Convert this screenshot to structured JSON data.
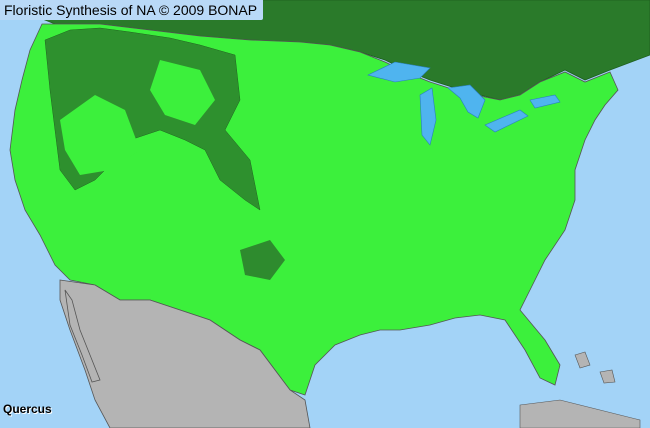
{
  "header": {
    "title": "Floristic Synthesis of NA © 2009 BONAP"
  },
  "map": {
    "taxon": "Quercus",
    "colors": {
      "water": "#a3d3f7",
      "present": "#3cf03c",
      "present_dark": "#2e8b2e",
      "canada": "#2a7a2a",
      "mexico": "#b4b4b4",
      "lakes": "#4fb4ef",
      "borders": "#555555"
    }
  }
}
